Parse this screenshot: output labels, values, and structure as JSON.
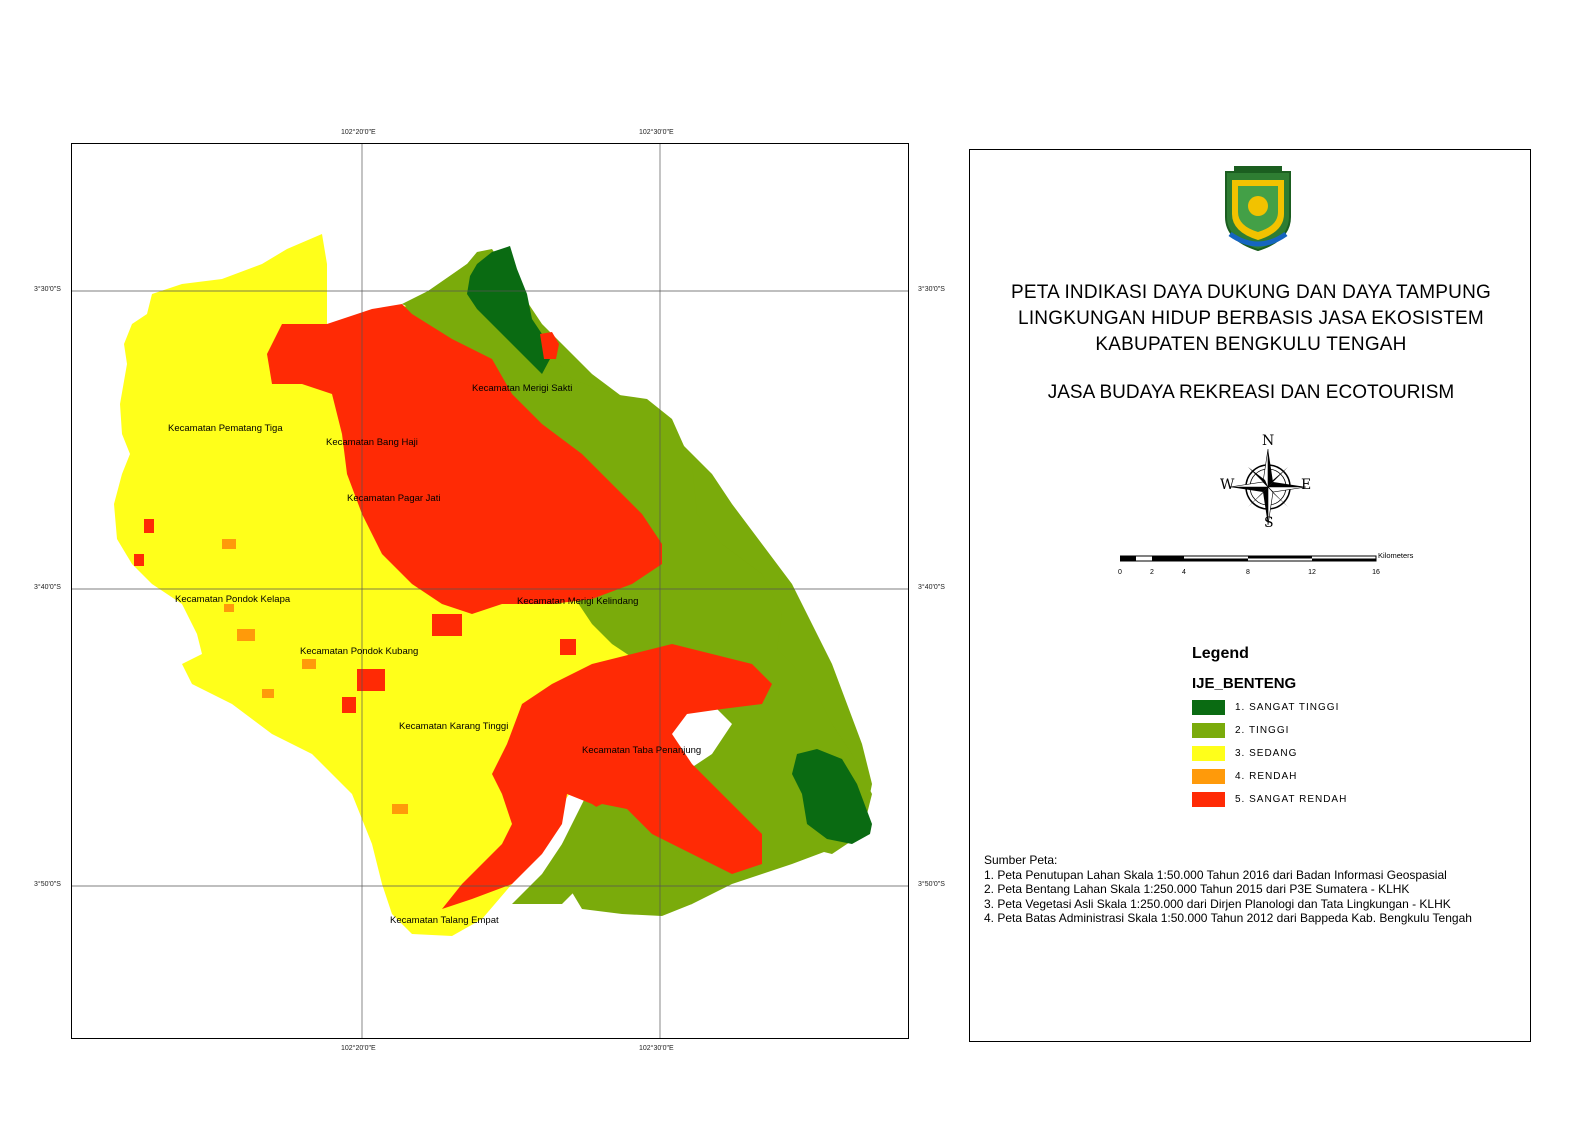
{
  "map": {
    "grid_labels_top": [
      "102°20'0\"E",
      "102°30'0\"E"
    ],
    "grid_labels_bottom": [
      "102°20'0\"E",
      "102°30'0\"E"
    ],
    "grid_labels_left": [
      "3°30'0\"S",
      "3°40'0\"S",
      "3°50'0\"S"
    ],
    "grid_labels_right": [
      "3°30'0\"S",
      "3°40'0\"S",
      "3°50'0\"S"
    ],
    "districts": [
      "Kecamatan Merigi Sakti",
      "Kecamatan Pematang Tiga",
      "Kecamatan Bang Haji",
      "Kecamatan Pagar Jati",
      "Kecamatan Pondok  Kelapa",
      "Kecamatan Merigi Kelindang",
      "Kecamatan Pondok  Kubang",
      "Kecamatan Karang Tinggi",
      "Kecamatan Taba Penanjung",
      "Kecamatan Talang Empat"
    ]
  },
  "panel": {
    "title_lines": [
      "PETA INDIKASI DAYA DUKUNG DAN DAYA TAMPUNG",
      "LINGKUNGAN HIDUP BERBASIS JASA EKOSISTEM",
      "KABUPATEN BENGKULU TENGAH"
    ],
    "subtitle": "JASA BUDAYA REKREASI DAN ECOTOURISM",
    "compass": {
      "n": "N",
      "s": "S",
      "e": "E",
      "w": "W"
    },
    "scale": {
      "unit": "Kilometers",
      "ticks": [
        "0",
        "2",
        "4",
        "8",
        "12",
        "16"
      ]
    },
    "legend": {
      "title": "Legend",
      "layer": "IJE_BENTENG",
      "items": [
        {
          "label": "1. SANGAT TINGGI",
          "color": "#0a6b12"
        },
        {
          "label": "2. TINGGI",
          "color": "#7aab0b"
        },
        {
          "label": "3. SEDANG",
          "color": "#ffff1a"
        },
        {
          "label": "4. RENDAH",
          "color": "#ff9a0a"
        },
        {
          "label": "5. SANGAT RENDAH",
          "color": "#ff2a05"
        }
      ]
    },
    "sources": {
      "heading": "Sumber Peta:",
      "lines": [
        "1. Peta Penutupan Lahan Skala 1:50.000 Tahun 2016 dari Badan Informasi Geospasial",
        "2. Peta Bentang Lahan Skala 1:250.000 Tahun 2015 dari  P3E Sumatera - KLHK",
        "3. Peta Vegetasi Asli Skala 1:250.000 dari Dirjen Planologi dan Tata Lingkungan - KLHK",
        "4. Peta Batas Administrasi Skala 1:50.000 Tahun 2012 dari Bappeda Kab. Bengkulu Tengah"
      ]
    }
  }
}
